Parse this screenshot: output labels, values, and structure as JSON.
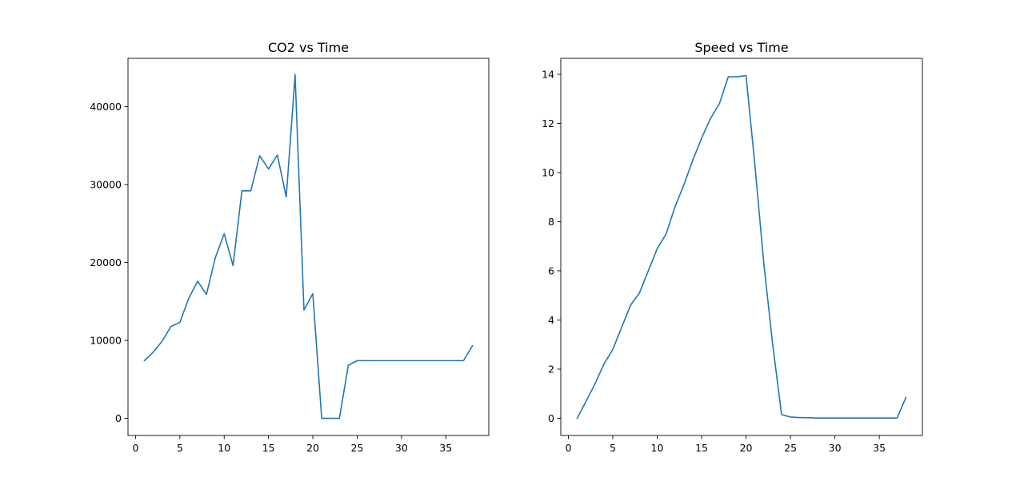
{
  "chart_data": [
    {
      "type": "line",
      "title": "CO2 vs Time",
      "xlabel": "",
      "ylabel": "",
      "xlim": [
        -0.85,
        39.85
      ],
      "ylim": [
        -2200,
        46200
      ],
      "x_ticks": [
        0,
        5,
        10,
        15,
        20,
        25,
        30,
        35
      ],
      "y_ticks": [
        0,
        10000,
        20000,
        30000,
        40000
      ],
      "grid": false,
      "series": [
        {
          "color": "#1f77b4",
          "x": [
            1,
            2,
            3,
            4,
            5,
            6,
            7,
            8,
            9,
            10,
            11,
            12,
            13,
            14,
            15,
            16,
            17,
            18,
            19,
            20,
            21,
            22,
            23,
            24,
            25,
            26,
            27,
            28,
            29,
            30,
            31,
            32,
            33,
            34,
            35,
            36,
            37,
            38
          ],
          "y": [
            7400,
            8500,
            9900,
            11800,
            12300,
            15400,
            17600,
            15900,
            20600,
            23700,
            19600,
            29200,
            29200,
            33700,
            32000,
            33800,
            28400,
            44100,
            13900,
            16000,
            0,
            0,
            0,
            6800,
            7400,
            7400,
            7400,
            7400,
            7400,
            7400,
            7400,
            7400,
            7400,
            7400,
            7400,
            7400,
            7400,
            9300
          ]
        }
      ]
    },
    {
      "type": "line",
      "title": "Speed vs Time",
      "xlabel": "",
      "ylabel": "",
      "xlim": [
        -0.85,
        39.85
      ],
      "ylim": [
        -0.7,
        14.65
      ],
      "x_ticks": [
        0,
        5,
        10,
        15,
        20,
        25,
        30,
        35
      ],
      "y_ticks": [
        0,
        2,
        4,
        6,
        8,
        10,
        12,
        14
      ],
      "grid": false,
      "series": [
        {
          "color": "#1f77b4",
          "x": [
            1,
            2,
            3,
            4,
            5,
            6,
            7,
            8,
            9,
            10,
            11,
            12,
            13,
            14,
            15,
            16,
            17,
            18,
            19,
            20,
            21,
            22,
            23,
            24,
            25,
            26,
            27,
            28,
            29,
            30,
            31,
            32,
            33,
            34,
            35,
            36,
            37,
            38
          ],
          "y": [
            0,
            0.7,
            1.4,
            2.2,
            2.8,
            3.7,
            4.6,
            5.1,
            6.0,
            6.9,
            7.5,
            8.6,
            9.5,
            10.5,
            11.4,
            12.2,
            12.8,
            13.9,
            13.9,
            13.95,
            10.3,
            6.3,
            3.0,
            0.15,
            0.05,
            0.03,
            0.02,
            0.01,
            0.01,
            0.01,
            0.01,
            0.01,
            0.01,
            0.01,
            0.01,
            0.01,
            0.01,
            0.85
          ]
        }
      ]
    }
  ]
}
